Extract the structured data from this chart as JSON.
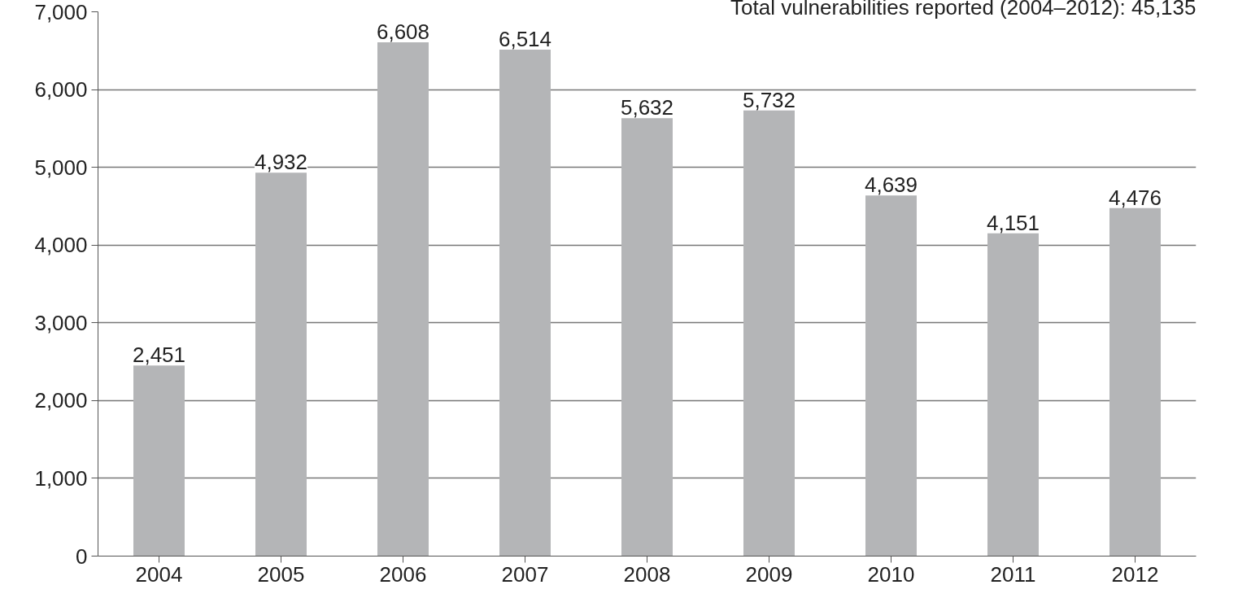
{
  "chart_data": {
    "type": "bar",
    "categories": [
      "2004",
      "2005",
      "2006",
      "2007",
      "2008",
      "2009",
      "2010",
      "2011",
      "2012"
    ],
    "values": [
      2451,
      4932,
      6608,
      6514,
      5632,
      5732,
      4639,
      4151,
      4476
    ],
    "color": "#b4b5b7",
    "value_labels": [
      "2,451",
      "4,932",
      "6,608",
      "6,514",
      "5,632",
      "5,732",
      "4,639",
      "4,151",
      "4,476"
    ],
    "ylim": [
      0,
      7000
    ],
    "yticks": [
      {
        "value": 0,
        "label": "0"
      },
      {
        "value": 1000,
        "label": "1,000"
      },
      {
        "value": 2000,
        "label": "2,000"
      },
      {
        "value": 3000,
        "label": "3,000"
      },
      {
        "value": 4000,
        "label": "4,000"
      },
      {
        "value": 5000,
        "label": "5,000"
      },
      {
        "value": 6000,
        "label": "6,000"
      },
      {
        "value": 7000,
        "label": "7,000"
      }
    ],
    "grid": "y",
    "annotations": [
      "Total vulnerabilities reported (2004–2012): 45,135"
    ]
  }
}
